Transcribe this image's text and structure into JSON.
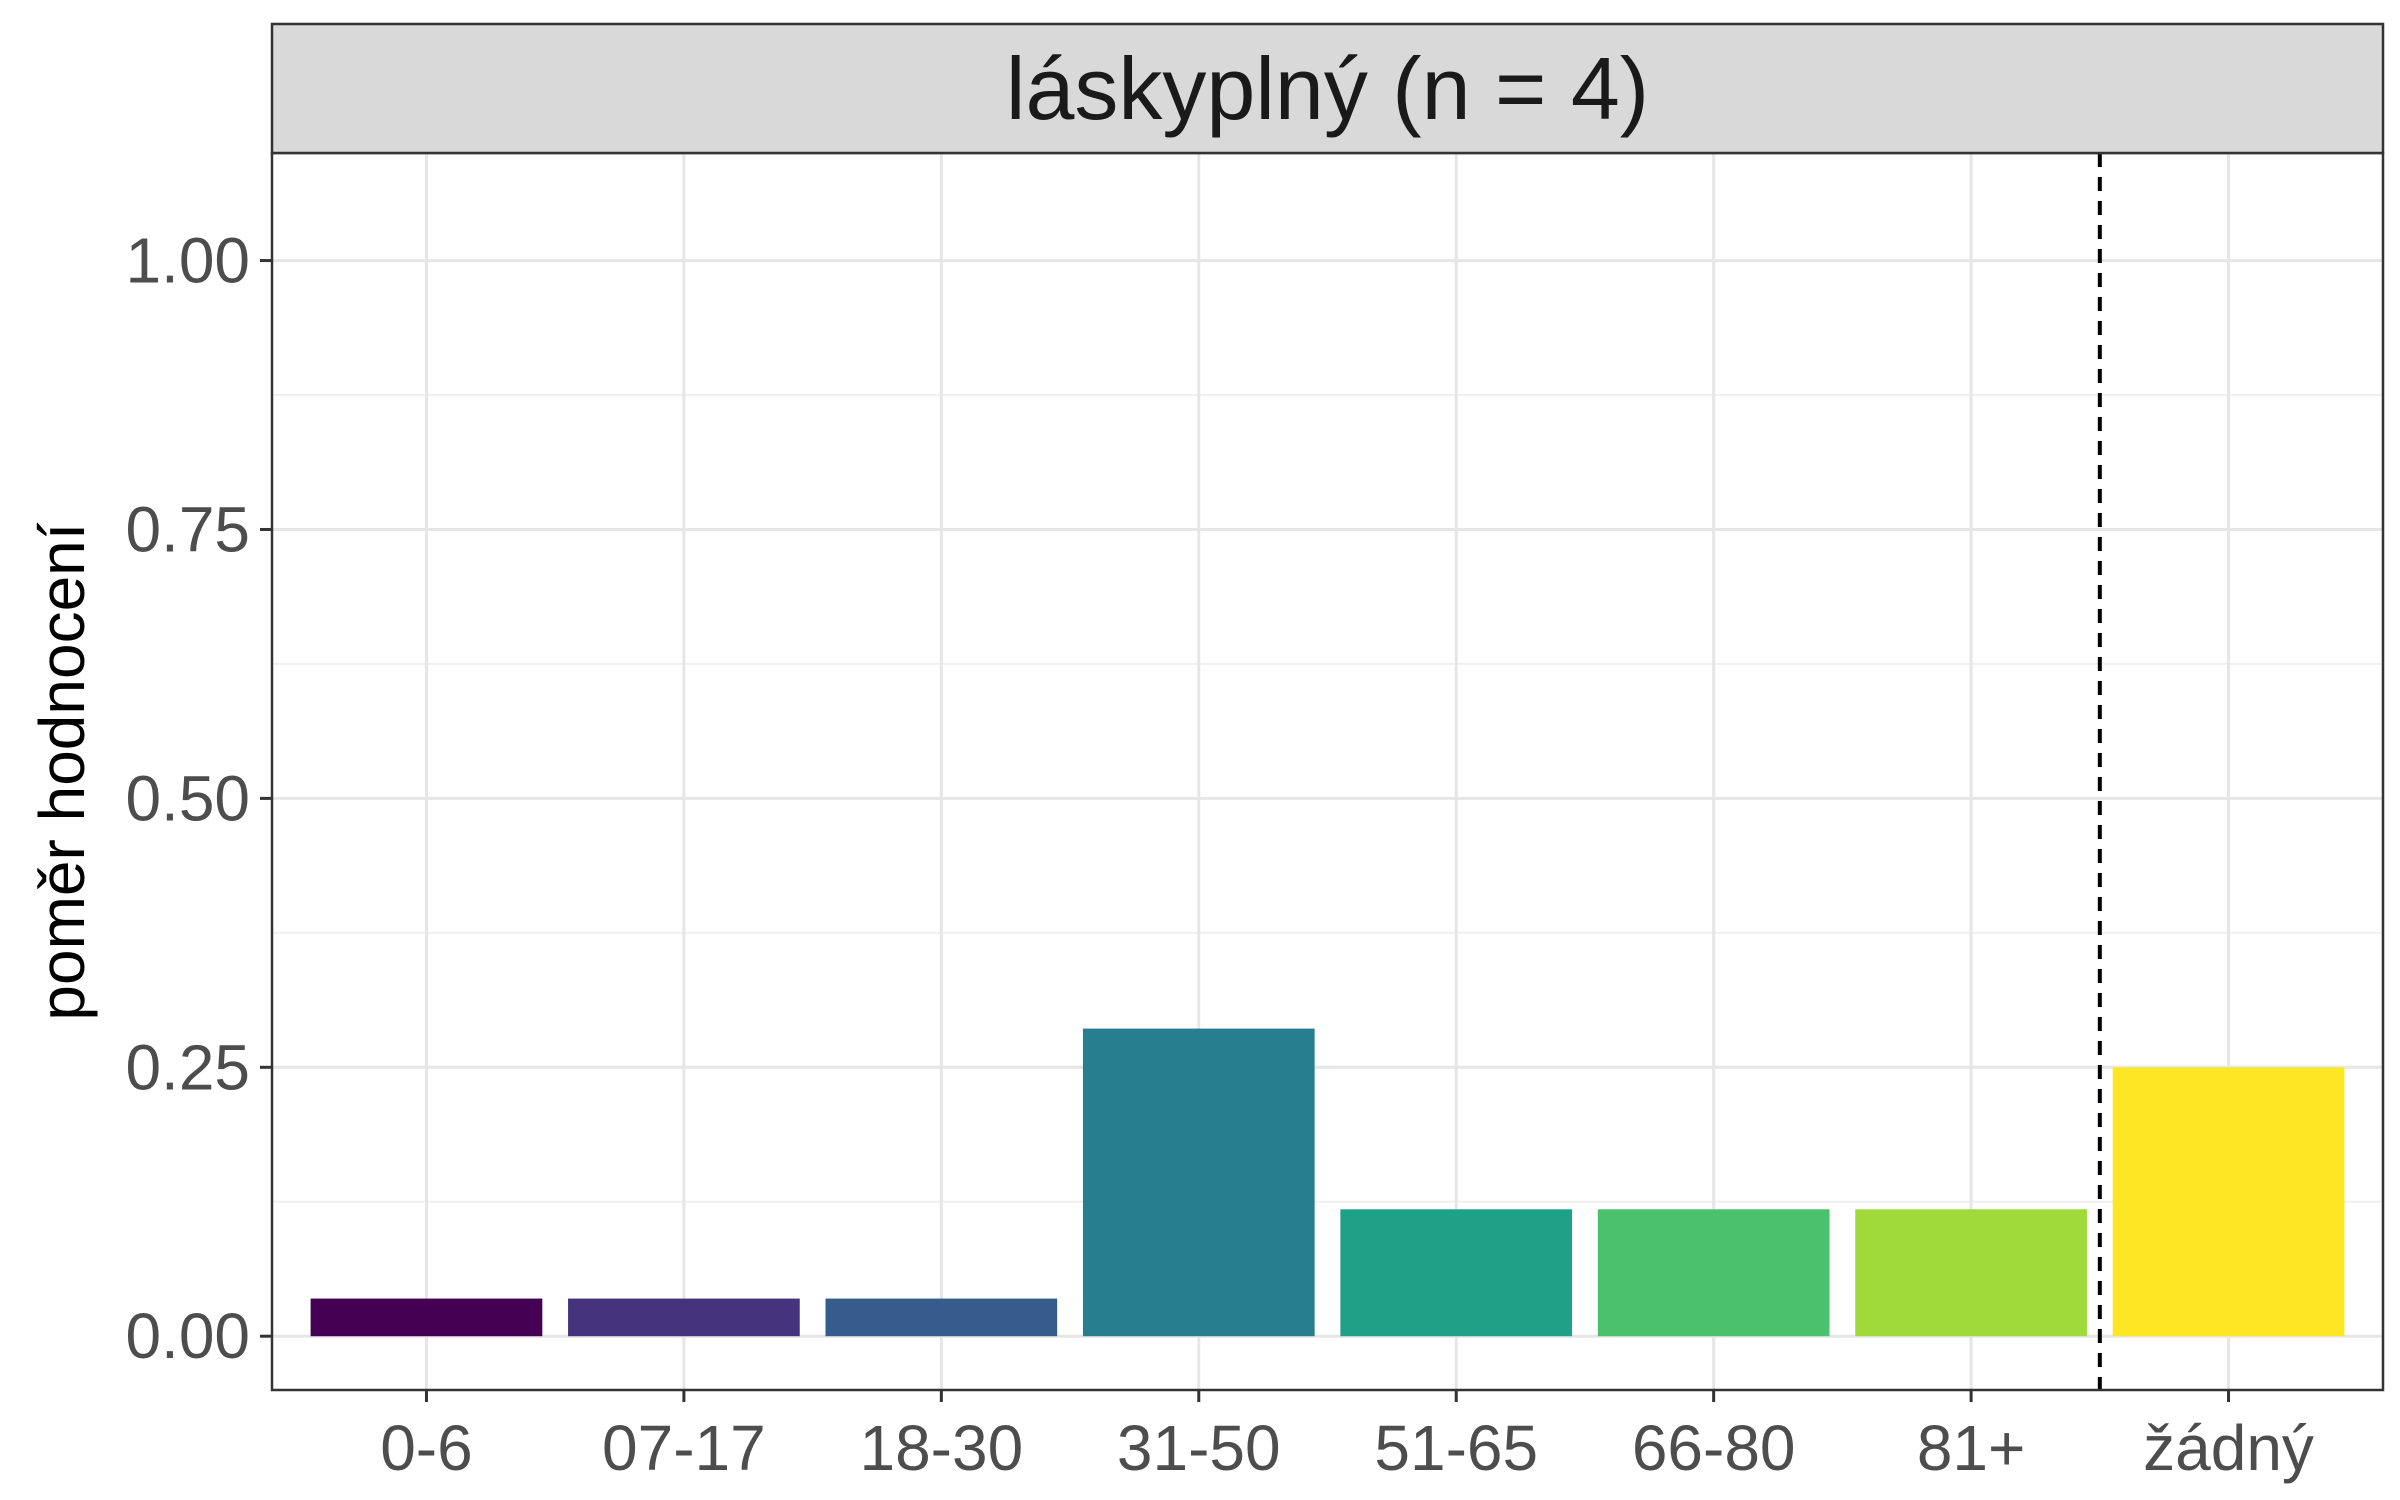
{
  "chart_data": {
    "type": "bar",
    "title": "láskyplný (n = 4)",
    "xlabel": "",
    "ylabel": "poměr hodnocení",
    "categories": [
      "0-6",
      "07-17",
      "18-30",
      "31-50",
      "51-65",
      "66-80",
      "81+",
      "žádný"
    ],
    "values": [
      0.035,
      0.035,
      0.035,
      0.286,
      0.118,
      0.118,
      0.118,
      0.25
    ],
    "colors": [
      "#440154",
      "#46337E",
      "#365C8D",
      "#277F8E",
      "#1FA187",
      "#4AC16D",
      "#9FDA3A",
      "#FDE725"
    ],
    "ylim": [
      -0.05,
      1.1
    ],
    "yticks": [
      0.0,
      0.25,
      0.5,
      0.75,
      1.0
    ],
    "ytick_labels": [
      "0.00",
      "0.25",
      "0.50",
      "0.75",
      "1.00"
    ],
    "grid": true,
    "reference_line": {
      "position_between": [
        "81+",
        "žádný"
      ],
      "style": "dashed"
    },
    "legend": "none"
  }
}
